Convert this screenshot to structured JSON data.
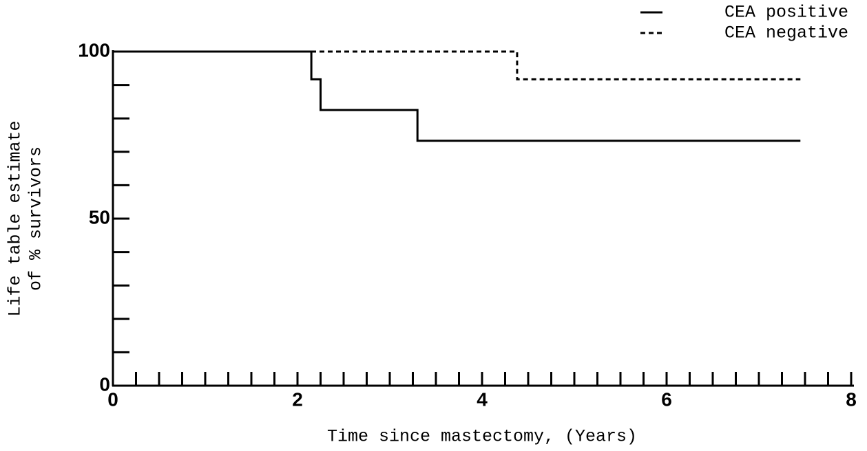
{
  "chart_data": {
    "type": "line",
    "x_label": "Time since mastectomy, (Years)",
    "y_label": [
      "Life table estimate",
      "of % survivors"
    ],
    "xlim": [
      0,
      8
    ],
    "xticks": [
      0,
      2,
      4,
      6,
      8
    ],
    "xminorticks": [
      0.25,
      0.5,
      0.75,
      1,
      1.25,
      1.5,
      1.75,
      2.25,
      2.5,
      2.75,
      3,
      3.25,
      3.5,
      3.75,
      4.25,
      4.5,
      4.75,
      5,
      5.25,
      5.5,
      5.75,
      6.25,
      6.5,
      6.75,
      7,
      7.25,
      7.5,
      7.75
    ],
    "ylim": [
      0,
      100
    ],
    "yticks": [
      0,
      50,
      100
    ],
    "yminorticks": [
      10,
      20,
      30,
      40,
      60,
      70,
      80,
      90
    ],
    "legend": "top-right",
    "series": [
      {
        "name": "CEA positive",
        "color": "#000000",
        "dash": "solid",
        "x": [
          0,
          2.15,
          2.15,
          2.25,
          2.25,
          3.3,
          3.3,
          7.45
        ],
        "values": [
          100,
          100,
          91.7,
          91.7,
          82.5,
          82.5,
          73.3,
          73.3
        ]
      },
      {
        "name": "CEA negative",
        "color": "#000000",
        "dash": "dashed",
        "x": [
          0,
          4.38,
          4.38,
          7.45
        ],
        "values": [
          100,
          100,
          91.7,
          91.7
        ]
      }
    ]
  }
}
